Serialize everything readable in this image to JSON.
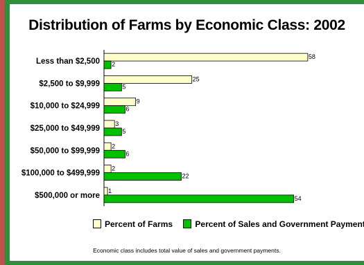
{
  "chart_data": {
    "type": "bar",
    "orientation": "horizontal",
    "title": "Distribution of Farms by Economic Class: 2002",
    "categories": [
      "Less than $2,500",
      "$2,500 to $9,999",
      "$10,000 to $24,999",
      "$25,000 to $49,999",
      "$50,000 to $99,999",
      "$100,000 to $499,999",
      "$500,000 or more"
    ],
    "series": [
      {
        "name": "Percent of Farms",
        "color": "#ffffcc",
        "values": [
          58,
          25,
          9,
          3,
          2,
          2,
          1
        ]
      },
      {
        "name": "Percent of Sales and Government Payments",
        "color": "#00c000",
        "values": [
          2,
          5,
          6,
          5,
          6,
          22,
          54
        ]
      }
    ],
    "xlim": [
      0,
      60
    ],
    "legend_position": "bottom",
    "footnote": "Economic class includes total value of sales and government payments."
  }
}
